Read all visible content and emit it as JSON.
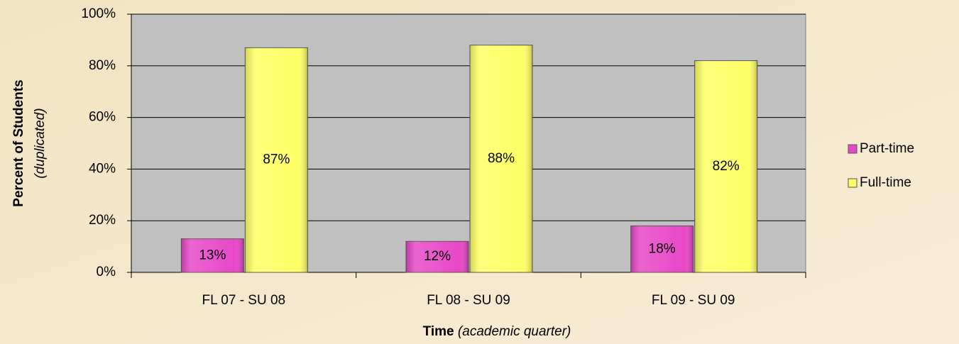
{
  "chart_data": {
    "type": "bar",
    "categories": [
      "FL 07 - SU 08",
      "FL 08 - SU 09",
      "FL 09 - SU 09"
    ],
    "series": [
      {
        "name": "Part-time",
        "color": "#e848c8",
        "values": [
          13,
          12,
          18
        ],
        "value_labels": [
          "13%",
          "12%",
          "18%"
        ]
      },
      {
        "name": "Full-time",
        "color": "#ffff66",
        "values": [
          87,
          88,
          82
        ],
        "value_labels": [
          "87%",
          "88%",
          "82%"
        ]
      }
    ],
    "ylim": [
      0,
      100
    ],
    "yticks": [
      {
        "value": 0,
        "label": "0%"
      },
      {
        "value": 20,
        "label": "20%"
      },
      {
        "value": 40,
        "label": "40%"
      },
      {
        "value": 60,
        "label": "60%"
      },
      {
        "value": 80,
        "label": "80%"
      },
      {
        "value": 100,
        "label": "100%"
      }
    ],
    "ylabel": {
      "text": "Percent of Students",
      "note": "(duplicated)"
    },
    "xlabel": {
      "text": "Time",
      "note": "(academic quarter)"
    },
    "grid": true,
    "legend": "right"
  }
}
